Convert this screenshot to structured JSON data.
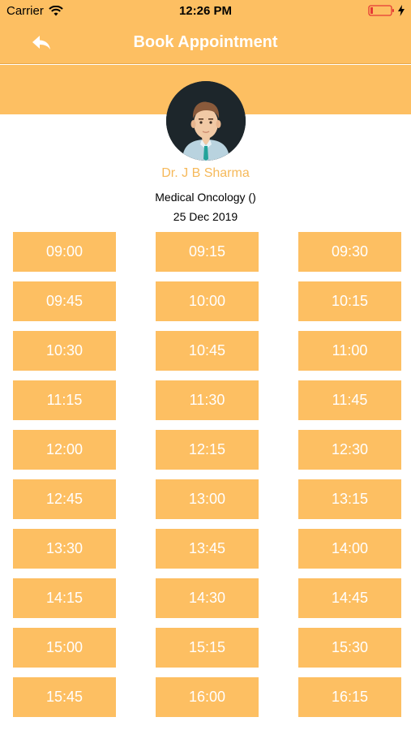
{
  "status_bar": {
    "carrier": "Carrier",
    "time": "12:26 PM"
  },
  "nav": {
    "title": "Book Appointment",
    "back_icon": "back-arrow-icon"
  },
  "doctor": {
    "name": "Dr.  J B Sharma",
    "specialty": "Medical Oncology ()",
    "date": "25 Dec 2019"
  },
  "colors": {
    "accent": "#FDBF62",
    "name_text": "#F6B95A",
    "avatar_bg": "#1d262b",
    "battery_low": "#e53935"
  },
  "slots": [
    "09:00",
    "09:15",
    "09:30",
    "09:45",
    "10:00",
    "10:15",
    "10:30",
    "10:45",
    "11:00",
    "11:15",
    "11:30",
    "11:45",
    "12:00",
    "12:15",
    "12:30",
    "12:45",
    "13:00",
    "13:15",
    "13:30",
    "13:45",
    "14:00",
    "14:15",
    "14:30",
    "14:45",
    "15:00",
    "15:15",
    "15:30",
    "15:45",
    "16:00",
    "16:15"
  ]
}
